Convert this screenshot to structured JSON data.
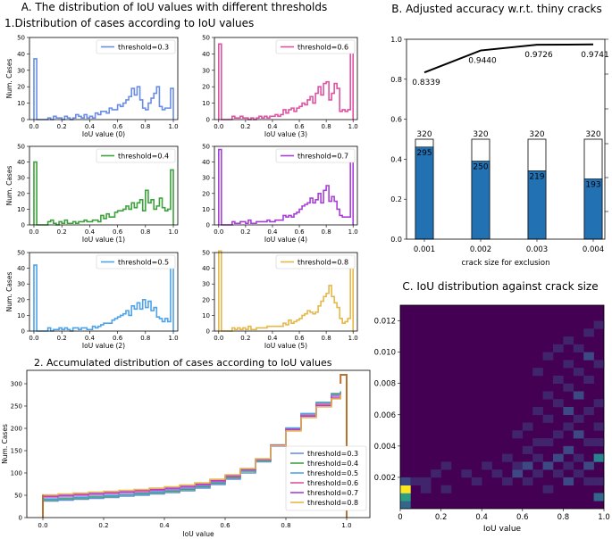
{
  "titles": {
    "panel_a": "A. The distribution of IoU values with different thresholds",
    "panel_a1": "1.Distribution of cases according to IoU values",
    "panel_a2": "2. Accumulated distribution of cases according to IoU values",
    "panel_b": "B. Adjusted accuracy w.r.t. thiny cracks",
    "panel_c": "C. IoU distribution against crack size"
  },
  "chart_data": [
    {
      "id": "hist",
      "type": "bar",
      "ylabel": "Num. Cases",
      "xlim": [
        0,
        1
      ],
      "ylim": [
        0,
        50
      ],
      "yticks": [
        "0",
        "10",
        "20",
        "30",
        "40",
        "50"
      ],
      "xticks": [
        "0.0",
        "0.2",
        "0.4",
        "0.6",
        "0.8",
        "1.0"
      ],
      "panels": [
        {
          "legend": "threshold=0.3",
          "xlabel": "IoU value (0)",
          "color": "#6a8ee6",
          "values": [
            37,
            0,
            0,
            0,
            0,
            1,
            0,
            2,
            1,
            1,
            0,
            2,
            1,
            0,
            1,
            3,
            2,
            1,
            3,
            1,
            2,
            1,
            4,
            3,
            5,
            5,
            4,
            7,
            6,
            6,
            9,
            8,
            10,
            12,
            14,
            19,
            15,
            20,
            12,
            7,
            6,
            10,
            13,
            16,
            20,
            8,
            6,
            7,
            7,
            19
          ]
        },
        {
          "legend": "threshold=0.6",
          "xlabel": "IoU value (3)",
          "color": "#e052a4",
          "values": [
            46,
            0,
            0,
            0,
            0,
            2,
            1,
            1,
            2,
            1,
            1,
            0,
            1,
            0,
            1,
            2,
            1,
            2,
            1,
            2,
            2,
            3,
            2,
            3,
            6,
            4,
            6,
            7,
            5,
            7,
            8,
            10,
            9,
            12,
            14,
            10,
            16,
            20,
            15,
            22,
            23,
            12,
            16,
            22,
            19,
            5,
            6,
            5,
            6,
            42
          ]
        },
        {
          "legend": "threshold=0.4",
          "xlabel": "IoU value (1)",
          "color": "#3da33d",
          "values": [
            40,
            0,
            0,
            0,
            0,
            2,
            3,
            1,
            0,
            2,
            1,
            3,
            1,
            1,
            2,
            1,
            2,
            2,
            3,
            2,
            2,
            3,
            3,
            2,
            6,
            4,
            7,
            5,
            5,
            8,
            9,
            9,
            10,
            12,
            10,
            14,
            11,
            14,
            16,
            9,
            22,
            14,
            16,
            10,
            12,
            17,
            11,
            9,
            10,
            35
          ]
        },
        {
          "legend": "threshold=0.7",
          "xlabel": "IoU value (4)",
          "color": "#a840d8",
          "values": [
            48,
            0,
            0,
            0,
            0,
            2,
            1,
            1,
            2,
            2,
            1,
            3,
            1,
            1,
            2,
            2,
            2,
            2,
            3,
            2,
            2,
            3,
            3,
            3,
            6,
            5,
            6,
            5,
            7,
            8,
            10,
            12,
            13,
            14,
            17,
            14,
            16,
            20,
            14,
            22,
            25,
            15,
            18,
            15,
            10,
            6,
            5,
            5,
            5,
            47
          ]
        },
        {
          "legend": "threshold=0.5",
          "xlabel": "IoU value (2)",
          "color": "#4fa3e8",
          "values": [
            42,
            0,
            0,
            0,
            0,
            2,
            0,
            1,
            1,
            2,
            1,
            2,
            1,
            0,
            2,
            2,
            1,
            2,
            2,
            1,
            1,
            3,
            2,
            3,
            4,
            5,
            5,
            5,
            7,
            8,
            9,
            10,
            11,
            13,
            10,
            16,
            14,
            18,
            14,
            20,
            15,
            19,
            13,
            15,
            9,
            8,
            6,
            8,
            6,
            45
          ]
        },
        {
          "legend": "threshold=0.8",
          "xlabel": "IoU value (5)",
          "color": "#e6b84a",
          "values": [
            51,
            0,
            0,
            0,
            0,
            2,
            1,
            2,
            1,
            2,
            1,
            3,
            1,
            1,
            2,
            2,
            2,
            2,
            3,
            3,
            3,
            3,
            3,
            3,
            5,
            4,
            7,
            5,
            6,
            7,
            8,
            10,
            11,
            13,
            12,
            11,
            12,
            16,
            19,
            22,
            24,
            29,
            22,
            18,
            15,
            8,
            5,
            6,
            8,
            44
          ]
        }
      ]
    },
    {
      "id": "cumulative",
      "type": "line",
      "title": "2. Accumulated distribution of cases according to IoU values",
      "xlabel": "IoU value",
      "ylabel": "Num. Cases",
      "xlim": [
        0,
        1
      ],
      "ylim": [
        0,
        320
      ],
      "yticks": [
        0,
        50,
        100,
        150,
        200,
        250,
        300
      ],
      "xticks": [
        "0.0",
        "0.2",
        "0.4",
        "0.6",
        "0.8",
        "1.0"
      ],
      "x": [
        0.0,
        0.05,
        0.1,
        0.15,
        0.2,
        0.25,
        0.3,
        0.35,
        0.4,
        0.45,
        0.5,
        0.55,
        0.6,
        0.65,
        0.7,
        0.75,
        0.8,
        0.85,
        0.9,
        0.95,
        0.98
      ],
      "series": [
        {
          "name": "threshold=0.3",
          "color": "#6a8ee6",
          "values": [
            37,
            39,
            41,
            43,
            45,
            48,
            50,
            53,
            56,
            60,
            66,
            74,
            86,
            100,
            125,
            160,
            198,
            232,
            258,
            278,
            283
          ]
        },
        {
          "name": "threshold=0.4",
          "color": "#3da33d",
          "values": [
            40,
            42,
            44,
            46,
            48,
            51,
            53,
            56,
            59,
            63,
            69,
            77,
            89,
            104,
            128,
            162,
            200,
            233,
            258,
            277,
            283
          ]
        },
        {
          "name": "threshold=0.5",
          "color": "#4fa3e8",
          "values": [
            42,
            44,
            46,
            48,
            50,
            52,
            55,
            58,
            61,
            65,
            71,
            79,
            91,
            106,
            130,
            163,
            201,
            233,
            257,
            275,
            281
          ]
        },
        {
          "name": "threshold=0.6",
          "color": "#e052a4",
          "values": [
            46,
            48,
            50,
            52,
            54,
            56,
            58,
            61,
            64,
            68,
            73,
            81,
            92,
            107,
            130,
            162,
            198,
            229,
            254,
            272,
            278
          ]
        },
        {
          "name": "threshold=0.7",
          "color": "#a840d8",
          "values": [
            48,
            50,
            52,
            54,
            56,
            58,
            61,
            63,
            66,
            70,
            75,
            83,
            94,
            108,
            131,
            162,
            197,
            227,
            251,
            268,
            274
          ]
        },
        {
          "name": "threshold=0.8",
          "color": "#e6b84a",
          "values": [
            51,
            53,
            55,
            57,
            59,
            61,
            63,
            66,
            69,
            73,
            78,
            86,
            96,
            110,
            132,
            161,
            194,
            224,
            248,
            266,
            276
          ]
        }
      ],
      "final_step_color": "#b8722f",
      "final_value": 320
    },
    {
      "id": "accuracy",
      "type": "bar",
      "title": "B. Adjusted accuracy w.r.t. thiny cracks",
      "xlabel": "crack size for exclusion",
      "categories": [
        "0.001",
        "0.002",
        "0.003",
        "0.004"
      ],
      "totals": [
        320,
        320,
        320,
        320
      ],
      "correct": [
        295,
        250,
        219,
        193
      ],
      "accuracy": [
        0.8339,
        0.944,
        0.9726,
        0.9741
      ],
      "accuracy_labels": [
        "0.8339",
        "0.9440",
        "0.9726",
        "0.9741"
      ],
      "ylim": [
        0,
        1.0
      ],
      "yticks": [
        "0.0",
        "0.2",
        "0.4",
        "0.6",
        "0.8",
        "1.0"
      ],
      "bar_color": "#2271b3",
      "line_color": "#000000"
    },
    {
      "id": "heatmap",
      "type": "heatmap",
      "title": "C. IoU distribution against crack size",
      "xlabel": "IoU value",
      "xlim": [
        0,
        1
      ],
      "ylim": [
        0,
        0.013
      ],
      "xticks": [
        "0",
        "0.2",
        "0.4",
        "0.6",
        "0.8",
        "1.0"
      ],
      "yticks": [
        "0.002",
        "0.004",
        "0.006",
        "0.008",
        "0.010",
        "0.012"
      ],
      "grid_cols": 20,
      "grid_rows": 26,
      "background_color": "#440154",
      "cells": [
        {
          "col": 0,
          "row": 0,
          "v": 3
        },
        {
          "col": 0,
          "row": 1,
          "v": 5
        },
        {
          "col": 0,
          "row": 2,
          "v": 9
        },
        {
          "col": 0,
          "row": 3,
          "v": 2
        },
        {
          "col": 1,
          "row": 3,
          "v": 1
        },
        {
          "col": 2,
          "row": 2,
          "v": 1
        },
        {
          "col": 2,
          "row": 3,
          "v": 1
        },
        {
          "col": 3,
          "row": 4,
          "v": 1
        },
        {
          "col": 4,
          "row": 2,
          "v": 1
        },
        {
          "col": 4,
          "row": 5,
          "v": 1
        },
        {
          "col": 6,
          "row": 4,
          "v": 1
        },
        {
          "col": 7,
          "row": 3,
          "v": 1
        },
        {
          "col": 8,
          "row": 5,
          "v": 1
        },
        {
          "col": 9,
          "row": 4,
          "v": 1
        },
        {
          "col": 10,
          "row": 3,
          "v": 1
        },
        {
          "col": 10,
          "row": 6,
          "v": 1
        },
        {
          "col": 11,
          "row": 4,
          "v": 2
        },
        {
          "col": 11,
          "row": 5,
          "v": 1
        },
        {
          "col": 11,
          "row": 9,
          "v": 1
        },
        {
          "col": 12,
          "row": 3,
          "v": 1
        },
        {
          "col": 12,
          "row": 5,
          "v": 2
        },
        {
          "col": 12,
          "row": 7,
          "v": 1
        },
        {
          "col": 12,
          "row": 10,
          "v": 1
        },
        {
          "col": 13,
          "row": 4,
          "v": 1
        },
        {
          "col": 13,
          "row": 6,
          "v": 1
        },
        {
          "col": 13,
          "row": 8,
          "v": 1
        },
        {
          "col": 13,
          "row": 12,
          "v": 1
        },
        {
          "col": 13,
          "row": 17,
          "v": 1
        },
        {
          "col": 14,
          "row": 2,
          "v": 1
        },
        {
          "col": 14,
          "row": 5,
          "v": 2
        },
        {
          "col": 14,
          "row": 8,
          "v": 1
        },
        {
          "col": 14,
          "row": 11,
          "v": 1
        },
        {
          "col": 14,
          "row": 14,
          "v": 1
        },
        {
          "col": 14,
          "row": 19,
          "v": 1
        },
        {
          "col": 15,
          "row": 4,
          "v": 1
        },
        {
          "col": 15,
          "row": 6,
          "v": 2
        },
        {
          "col": 15,
          "row": 9,
          "v": 1
        },
        {
          "col": 15,
          "row": 13,
          "v": 1
        },
        {
          "col": 15,
          "row": 16,
          "v": 1
        },
        {
          "col": 15,
          "row": 20,
          "v": 1
        },
        {
          "col": 16,
          "row": 3,
          "v": 2
        },
        {
          "col": 16,
          "row": 5,
          "v": 1
        },
        {
          "col": 16,
          "row": 7,
          "v": 2
        },
        {
          "col": 16,
          "row": 10,
          "v": 1
        },
        {
          "col": 16,
          "row": 12,
          "v": 2
        },
        {
          "col": 16,
          "row": 15,
          "v": 1
        },
        {
          "col": 16,
          "row": 18,
          "v": 1
        },
        {
          "col": 16,
          "row": 21,
          "v": 1
        },
        {
          "col": 17,
          "row": 4,
          "v": 1
        },
        {
          "col": 17,
          "row": 6,
          "v": 1
        },
        {
          "col": 17,
          "row": 9,
          "v": 2
        },
        {
          "col": 17,
          "row": 11,
          "v": 1
        },
        {
          "col": 17,
          "row": 14,
          "v": 2
        },
        {
          "col": 17,
          "row": 17,
          "v": 1
        },
        {
          "col": 17,
          "row": 20,
          "v": 1
        },
        {
          "col": 18,
          "row": 3,
          "v": 1
        },
        {
          "col": 18,
          "row": 5,
          "v": 2
        },
        {
          "col": 18,
          "row": 8,
          "v": 1
        },
        {
          "col": 18,
          "row": 12,
          "v": 1
        },
        {
          "col": 18,
          "row": 16,
          "v": 1
        },
        {
          "col": 18,
          "row": 19,
          "v": 2
        },
        {
          "col": 18,
          "row": 22,
          "v": 1
        },
        {
          "col": 19,
          "row": 1,
          "v": 3
        },
        {
          "col": 19,
          "row": 3,
          "v": 1
        },
        {
          "col": 19,
          "row": 6,
          "v": 4
        },
        {
          "col": 19,
          "row": 8,
          "v": 1
        },
        {
          "col": 19,
          "row": 10,
          "v": 1
        },
        {
          "col": 19,
          "row": 13,
          "v": 1
        },
        {
          "col": 19,
          "row": 18,
          "v": 1
        },
        {
          "col": 19,
          "row": 23,
          "v": 1
        }
      ],
      "vmax": 9
    }
  ]
}
